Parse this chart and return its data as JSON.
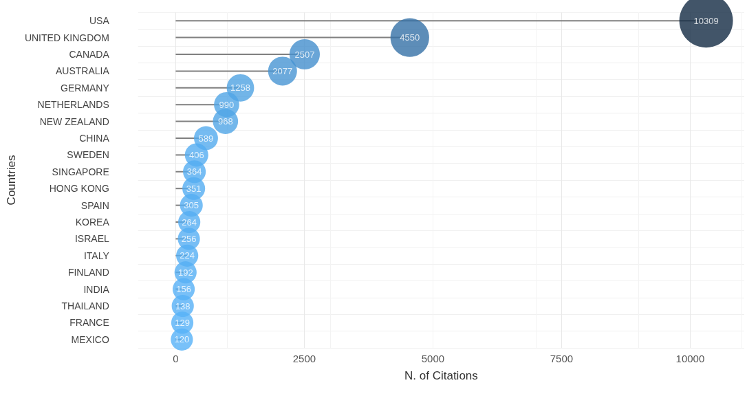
{
  "chart_data": {
    "type": "lollipop",
    "orientation": "horizontal",
    "xlabel": "N. of Citations",
    "ylabel": "Countries",
    "categories": [
      "USA",
      "UNITED KINGDOM",
      "CANADA",
      "AUSTRALIA",
      "GERMANY",
      "NETHERLANDS",
      "NEW ZEALAND",
      "CHINA",
      "SWEDEN",
      "SINGAPORE",
      "HONG KONG",
      "SPAIN",
      "KOREA",
      "ISRAEL",
      "ITALY",
      "FINLAND",
      "INDIA",
      "THAILAND",
      "FRANCE",
      "MEXICO"
    ],
    "values": [
      10309,
      4550,
      2507,
      2077,
      1258,
      990,
      968,
      589,
      406,
      364,
      351,
      305,
      264,
      256,
      224,
      192,
      156,
      138,
      129,
      120
    ],
    "colors": [
      "#132b43",
      "#3571a6",
      "#448fcd",
      "#4795d3",
      "#4fa2e2",
      "#50a5e6",
      "#50a5e6",
      "#52aaed",
      "#54adf1",
      "#54adf1",
      "#54adf1",
      "#55aef2",
      "#55aef3",
      "#55aef3",
      "#55aff4",
      "#55aff4",
      "#56b0f6",
      "#56b0f6",
      "#56b1f7",
      "#56b1f7"
    ],
    "sizes": [
      1,
      0.52,
      0.32,
      0.29,
      0.26,
      0.22,
      0.22,
      0.2,
      0.19,
      0.18,
      0.18,
      0.18,
      0.17,
      0.17,
      0.17,
      0.17,
      0.17,
      0.17,
      0.17,
      0.17
    ],
    "xlim": [
      -730,
      11050
    ],
    "xticks": [
      0,
      2500,
      5000,
      7500,
      10000
    ],
    "grid": true,
    "data_labels": true
  }
}
